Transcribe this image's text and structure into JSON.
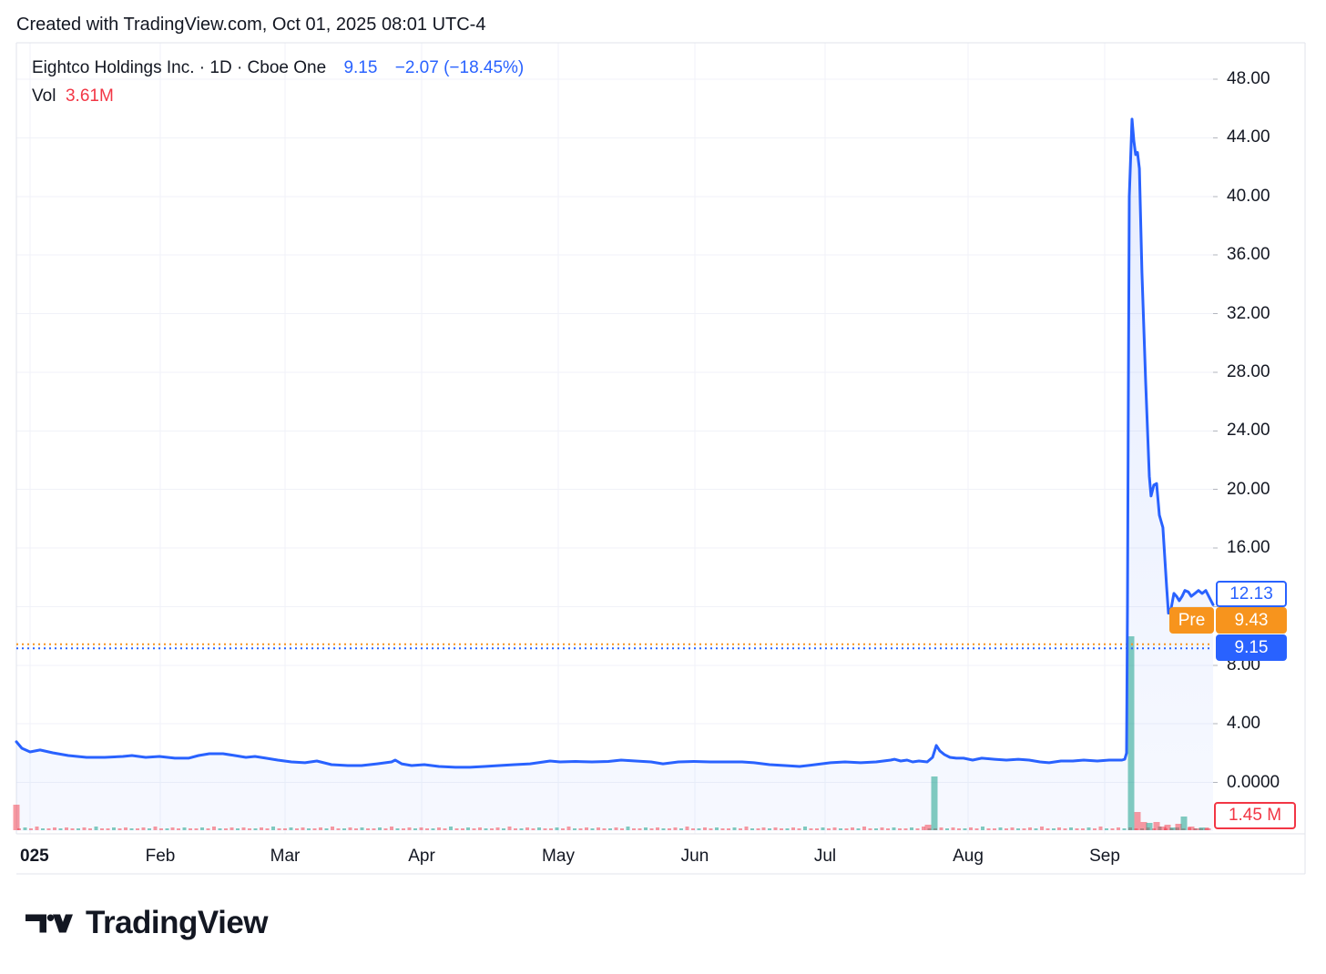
{
  "header": {
    "credit": "Created with TradingView.com, Oct 01, 2025 08:01 UTC-4"
  },
  "legend": {
    "title": "Eightco Holdings Inc. · 1D · Cboe One",
    "price": "9.15",
    "change": "−2.07 (−18.45%)",
    "vol_label": "Vol",
    "vol_value": "3.61M"
  },
  "price_labels": {
    "last": "12.13",
    "pre_badge": "Pre",
    "pre_value": "9.43",
    "close_value": "9.15",
    "volume_value": "1.45 M"
  },
  "footer": {
    "brand": "TradingView"
  },
  "colors": {
    "line_blue": "#2962FF",
    "pre_orange": "#F7941D",
    "down_red": "#F23645",
    "vol_up_teal": "#089981",
    "grid": "#F0F2F8",
    "border": "#E0E3EB",
    "text": "#131722"
  },
  "chart_data": {
    "type": "line",
    "title": "Eightco Holdings Inc. · 1D · Cboe One",
    "exchange": "Cboe One",
    "interval": "1D",
    "last_price": 12.13,
    "close_price": 9.15,
    "pre_market_price": 9.43,
    "last_volume_label": "1.45 M",
    "current_volume_label": "3.61M",
    "ylim": [
      0,
      48
    ],
    "grid": true,
    "legend_position": "top-left",
    "y_ticks": [
      {
        "v": 48,
        "label": "48.00"
      },
      {
        "v": 44,
        "label": "44.00"
      },
      {
        "v": 40,
        "label": "40.00"
      },
      {
        "v": 36,
        "label": "36.00"
      },
      {
        "v": 32,
        "label": "32.00"
      },
      {
        "v": 28,
        "label": "28.00"
      },
      {
        "v": 24,
        "label": "24.00"
      },
      {
        "v": 20,
        "label": "20.00"
      },
      {
        "v": 16,
        "label": "16.00"
      },
      {
        "v": 12,
        "label": "12.00"
      },
      {
        "v": 8,
        "label": "8.00"
      },
      {
        "v": 4,
        "label": "4.00"
      },
      {
        "v": 0,
        "label": "0.0000"
      }
    ],
    "x_ticks": [
      {
        "label": "025",
        "f": 0.0114,
        "bold": true
      },
      {
        "label": "Feb",
        "f": 0.1202
      },
      {
        "label": "Mar",
        "f": 0.2245
      },
      {
        "label": "Apr",
        "f": 0.3386
      },
      {
        "label": "May",
        "f": 0.4528
      },
      {
        "label": "Jun",
        "f": 0.567
      },
      {
        "label": "Jul",
        "f": 0.6758
      },
      {
        "label": "Aug",
        "f": 0.7953
      },
      {
        "label": "Sep",
        "f": 0.9094
      }
    ],
    "series": [
      {
        "name": "close",
        "points": [
          [
            0.0,
            2.77
          ],
          [
            0.0046,
            2.33
          ],
          [
            0.0114,
            2.08
          ],
          [
            0.0198,
            2.21
          ],
          [
            0.0304,
            2.02
          ],
          [
            0.0434,
            1.83
          ],
          [
            0.0586,
            1.71
          ],
          [
            0.0738,
            1.71
          ],
          [
            0.089,
            1.77
          ],
          [
            0.0966,
            1.83
          ],
          [
            0.1081,
            1.71
          ],
          [
            0.1195,
            1.77
          ],
          [
            0.1324,
            1.65
          ],
          [
            0.1438,
            1.65
          ],
          [
            0.1522,
            1.83
          ],
          [
            0.1613,
            1.96
          ],
          [
            0.1727,
            1.96
          ],
          [
            0.1826,
            1.83
          ],
          [
            0.1918,
            1.71
          ],
          [
            0.1994,
            1.77
          ],
          [
            0.2085,
            1.65
          ],
          [
            0.2184,
            1.52
          ],
          [
            0.2298,
            1.4
          ],
          [
            0.2412,
            1.34
          ],
          [
            0.2511,
            1.46
          ],
          [
            0.2633,
            1.21
          ],
          [
            0.277,
            1.15
          ],
          [
            0.2884,
            1.15
          ],
          [
            0.3014,
            1.27
          ],
          [
            0.3135,
            1.4
          ],
          [
            0.3166,
            1.52
          ],
          [
            0.3219,
            1.27
          ],
          [
            0.3303,
            1.15
          ],
          [
            0.3409,
            1.21
          ],
          [
            0.3531,
            1.09
          ],
          [
            0.3668,
            1.03
          ],
          [
            0.379,
            1.03
          ],
          [
            0.3912,
            1.09
          ],
          [
            0.4034,
            1.15
          ],
          [
            0.4163,
            1.21
          ],
          [
            0.4292,
            1.27
          ],
          [
            0.4406,
            1.4
          ],
          [
            0.446,
            1.46
          ],
          [
            0.4543,
            1.4
          ],
          [
            0.4672,
            1.43
          ],
          [
            0.4809,
            1.4
          ],
          [
            0.4946,
            1.43
          ],
          [
            0.5053,
            1.52
          ],
          [
            0.5175,
            1.46
          ],
          [
            0.5304,
            1.4
          ],
          [
            0.5403,
            1.27
          ],
          [
            0.5532,
            1.4
          ],
          [
            0.5662,
            1.43
          ],
          [
            0.5799,
            1.4
          ],
          [
            0.5936,
            1.4
          ],
          [
            0.6065,
            1.4
          ],
          [
            0.6164,
            1.34
          ],
          [
            0.6294,
            1.21
          ],
          [
            0.6423,
            1.15
          ],
          [
            0.6545,
            1.09
          ],
          [
            0.6674,
            1.21
          ],
          [
            0.6804,
            1.34
          ],
          [
            0.6925,
            1.4
          ],
          [
            0.7055,
            1.34
          ],
          [
            0.7184,
            1.4
          ],
          [
            0.7306,
            1.52
          ],
          [
            0.7337,
            1.58
          ],
          [
            0.739,
            1.46
          ],
          [
            0.7443,
            1.52
          ],
          [
            0.7489,
            1.4
          ],
          [
            0.7542,
            1.46
          ],
          [
            0.7611,
            1.4
          ],
          [
            0.7656,
            1.71
          ],
          [
            0.7687,
            2.52
          ],
          [
            0.7717,
            2.15
          ],
          [
            0.7755,
            1.9
          ],
          [
            0.7801,
            1.71
          ],
          [
            0.7854,
            1.65
          ],
          [
            0.7915,
            1.65
          ],
          [
            0.7991,
            1.52
          ],
          [
            0.8067,
            1.65
          ],
          [
            0.8174,
            1.58
          ],
          [
            0.8273,
            1.52
          ],
          [
            0.8372,
            1.58
          ],
          [
            0.8463,
            1.52
          ],
          [
            0.8554,
            1.4
          ],
          [
            0.863,
            1.34
          ],
          [
            0.8729,
            1.46
          ],
          [
            0.8828,
            1.46
          ],
          [
            0.8919,
            1.52
          ],
          [
            0.9033,
            1.46
          ],
          [
            0.9132,
            1.52
          ],
          [
            0.9239,
            1.52
          ],
          [
            0.9262,
            1.58
          ],
          [
            0.9277,
            2.0
          ],
          [
            0.9285,
            12.0
          ],
          [
            0.9293,
            28.0
          ],
          [
            0.93,
            40.0
          ],
          [
            0.9323,
            45.27
          ],
          [
            0.9338,
            43.8
          ],
          [
            0.9353,
            42.85
          ],
          [
            0.9368,
            43.0
          ],
          [
            0.9384,
            41.9
          ],
          [
            0.9406,
            34.8
          ],
          [
            0.9437,
            27.3
          ],
          [
            0.9467,
            20.9
          ],
          [
            0.9482,
            19.55
          ],
          [
            0.9505,
            20.3
          ],
          [
            0.9528,
            20.4
          ],
          [
            0.9551,
            18.25
          ],
          [
            0.9581,
            17.4
          ],
          [
            0.9612,
            13.35
          ],
          [
            0.9627,
            11.55
          ],
          [
            0.965,
            11.9
          ],
          [
            0.9673,
            12.9
          ],
          [
            0.9695,
            12.7
          ],
          [
            0.9718,
            12.4
          ],
          [
            0.9741,
            12.7
          ],
          [
            0.9764,
            13.1
          ],
          [
            0.9794,
            13.0
          ],
          [
            0.9817,
            12.7
          ],
          [
            0.9848,
            12.9
          ],
          [
            0.9878,
            13.1
          ],
          [
            0.9909,
            12.9
          ],
          [
            0.9939,
            13.1
          ],
          [
            0.997,
            12.6
          ],
          [
            1.0,
            12.13
          ]
        ]
      }
    ],
    "volume_bars": [
      [
        0.0,
        28,
        "down"
      ],
      [
        0.7618,
        6,
        "down"
      ],
      [
        0.7671,
        59,
        "up"
      ],
      [
        0.9315,
        213,
        "up"
      ],
      [
        0.9368,
        20,
        "down"
      ],
      [
        0.9422,
        9,
        "down"
      ],
      [
        0.9467,
        8,
        "up"
      ],
      [
        0.9528,
        9,
        "down"
      ],
      [
        0.9581,
        4,
        "down"
      ],
      [
        0.9619,
        6,
        "down"
      ],
      [
        0.9665,
        3,
        "up"
      ],
      [
        0.9711,
        7,
        "down"
      ],
      [
        0.9756,
        15,
        "up"
      ],
      [
        0.9817,
        4,
        "down"
      ],
      [
        0.9863,
        2,
        "down"
      ],
      [
        0.9909,
        3,
        "up"
      ],
      [
        0.9954,
        2,
        "down"
      ]
    ]
  }
}
